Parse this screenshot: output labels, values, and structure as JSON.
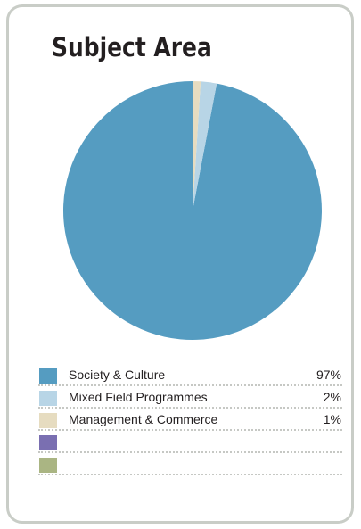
{
  "chart_data": {
    "type": "pie",
    "title": "Subject Area",
    "categories": [
      "Society & Culture",
      "Mixed Field Programmes",
      "Management & Commerce",
      "",
      ""
    ],
    "values": [
      97,
      2,
      1,
      0,
      0
    ],
    "value_labels": [
      "97%",
      "2%",
      "1%",
      "",
      ""
    ],
    "colors": [
      "#559cc1",
      "#b8d5e6",
      "#e6dcc0",
      "#7a6fb1",
      "#aab583"
    ],
    "legend_position": "bottom"
  }
}
